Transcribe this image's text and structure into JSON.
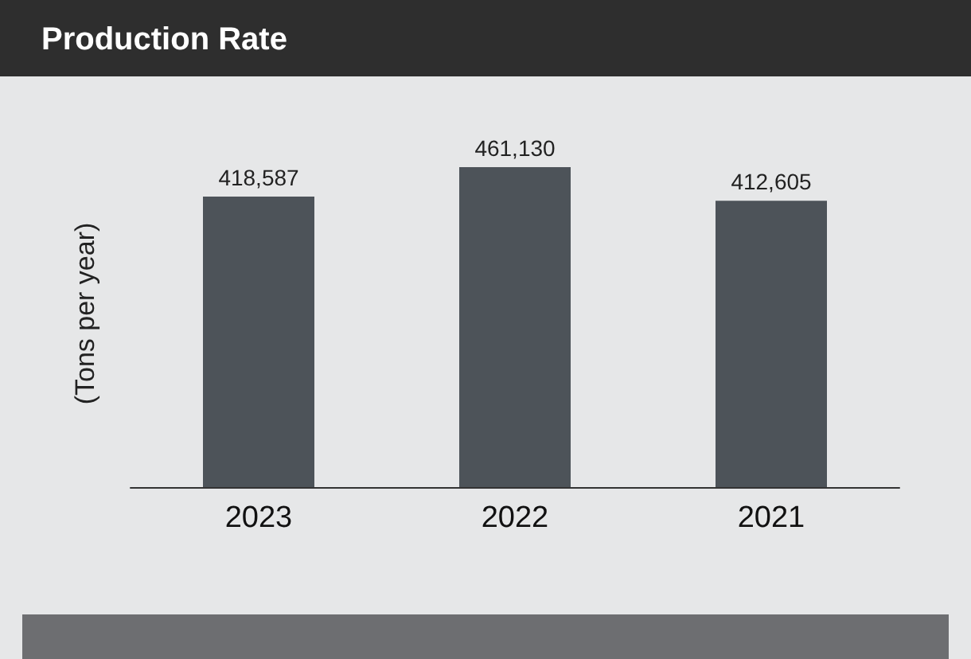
{
  "chart_data": {
    "type": "bar",
    "title": "Production Rate",
    "ylabel": "(Tons per year)",
    "categories": [
      "2023",
      "2022",
      "2021"
    ],
    "values": [
      418587,
      461130,
      412605
    ],
    "value_labels": [
      "418,587",
      "461,130",
      "412,605"
    ],
    "color": "#4d5359",
    "grid": false
  }
}
